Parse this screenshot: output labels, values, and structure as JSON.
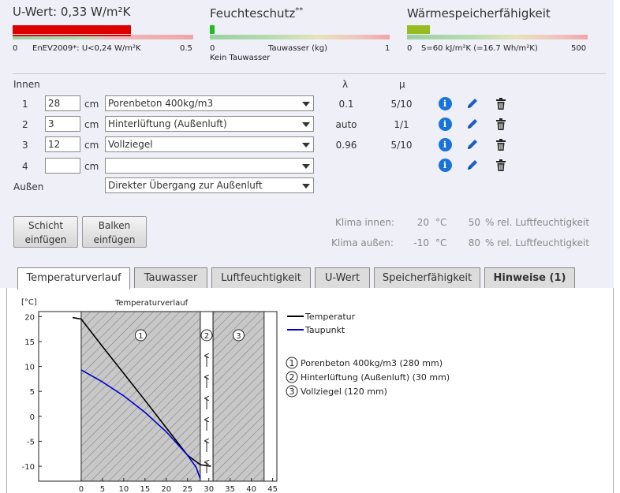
{
  "indicators": {
    "uwert": {
      "title": "U-Wert: 0,33 W/m²K",
      "scale_min": "0",
      "scale_label": "EnEV2009*: U<0,24 W/m²K",
      "scale_max": "0.5",
      "level": 0.66
    },
    "feuchte": {
      "title": "Feuchteschutz",
      "title_sup": "**",
      "scale_min": "0",
      "scale_label": "Tauwasser (kg)",
      "scale_max": "1",
      "status": "Kein Tauwasser",
      "level": 0.0
    },
    "waerme": {
      "title": "Wärmespeicherfähigkeit",
      "scale_min": "0",
      "scale_label": "S=60 kJ/m²K (=16.7 Wh/m²K)",
      "scale_max": "500",
      "level": 0.12
    }
  },
  "colors": {
    "red": "#dd0000",
    "green": "#22bb22",
    "olive": "#99bb22",
    "blue": "#1a73d8",
    "tab_bg": "#dcdcdc"
  },
  "layers": {
    "innen_label": "Innen",
    "aussen_label": "Außen",
    "lambda_header": "λ",
    "mu_header": "μ",
    "unit": "cm",
    "rows": [
      {
        "num": "1",
        "thickness": "28",
        "material": "Porenbeton 400kg/m3",
        "lambda": "0.1",
        "mu": "5/10"
      },
      {
        "num": "2",
        "thickness": "3",
        "material": "Hinterlüftung (Außenluft)",
        "lambda": "auto",
        "mu": "1/1"
      },
      {
        "num": "3",
        "thickness": "12",
        "material": "Vollziegel",
        "lambda": "0.96",
        "mu": "5/10"
      },
      {
        "num": "4",
        "thickness": "",
        "material": "",
        "lambda": "",
        "mu": ""
      }
    ],
    "outside_material": "Direkter Übergang zur Außenluft",
    "icons": [
      "info-icon",
      "pencil-icon",
      "trash-icon"
    ]
  },
  "buttons": {
    "schicht": [
      "Schicht",
      "einfügen"
    ],
    "balken": [
      "Balken",
      "einfügen"
    ]
  },
  "climate": {
    "innen": {
      "label": "Klima innen:",
      "temp": "20",
      "temp_unit": "°C",
      "humidity": "50",
      "humidity_unit": "% rel. Luftfeuchtigkeit"
    },
    "aussen": {
      "label": "Klima außen:",
      "temp": "-10",
      "temp_unit": "°C",
      "humidity": "80",
      "humidity_unit": "% rel. Luftfeuchtigkeit"
    }
  },
  "tabs": [
    {
      "label": "Temperaturverlauf",
      "active": true
    },
    {
      "label": "Tauwasser",
      "active": false
    },
    {
      "label": "Luftfeuchtigkeit",
      "active": false
    },
    {
      "label": "U-Wert",
      "active": false
    },
    {
      "label": "Speicherfähigkeit",
      "active": false
    },
    {
      "label": "Hinweise (1)",
      "active": false
    }
  ],
  "chart_data": {
    "type": "line",
    "title": "Temperaturverlauf",
    "ylabel": "[°C]",
    "xlabel": "",
    "xlim": [
      -10,
      46
    ],
    "ylim": [
      -13,
      21
    ],
    "xticks": [
      0,
      5,
      10,
      15,
      20,
      25,
      30,
      35,
      40,
      45
    ],
    "yticks": [
      20,
      15,
      10,
      5,
      0,
      -5,
      -10
    ],
    "grid": false,
    "legend_position": "right",
    "series": [
      {
        "name": "Temperatur",
        "color": "#000000",
        "x": [
          -2,
          0,
          5,
          10,
          15,
          20,
          25,
          28,
          30.5
        ],
        "y": [
          19.8,
          19.5,
          14.0,
          8.6,
          3.2,
          -2.3,
          -7.8,
          -9.7,
          -10.0
        ]
      },
      {
        "name": "Taupunkt",
        "color": "#0000cc",
        "x": [
          0,
          5,
          10,
          15,
          20,
          25,
          27,
          28
        ],
        "y": [
          9.3,
          6.9,
          4.1,
          0.8,
          -3.1,
          -7.8,
          -10.2,
          -12.5
        ]
      }
    ],
    "regions": [
      {
        "num": "1",
        "from": 0,
        "to": 28,
        "hatched": true
      },
      {
        "num": "2",
        "from": 28,
        "to": 31,
        "hatched": false
      },
      {
        "num": "3",
        "from": 31,
        "to": 43,
        "hatched": true
      }
    ],
    "layer_legend": [
      {
        "num": "1",
        "label": "Porenbeton 400kg/m3 (280 mm)"
      },
      {
        "num": "2",
        "label": "Hinterlüftung (Außenluft) (30 mm)"
      },
      {
        "num": "3",
        "label": "Vollziegel (120 mm)"
      }
    ]
  }
}
